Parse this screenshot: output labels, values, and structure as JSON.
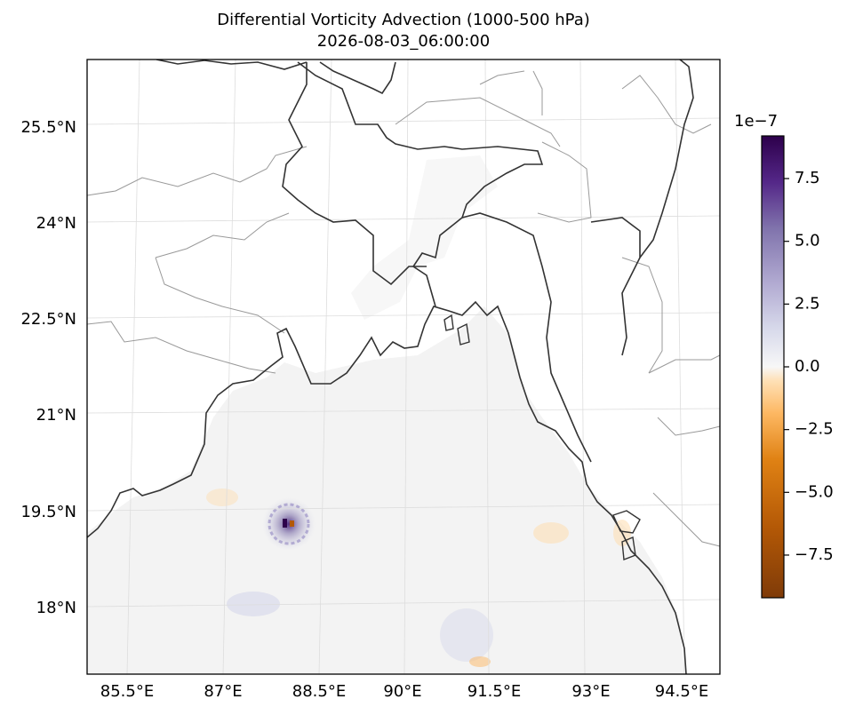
{
  "figure": {
    "title_line1": "Differential Vorticity Advection (1000-500 hPa)",
    "title_line2": "2026-08-03_06:00:00"
  },
  "axes": {
    "lon_labels": [
      "85.5°E",
      "87°E",
      "88.5°E",
      "90°E",
      "91.5°E",
      "93°E",
      "94.5°E"
    ],
    "lat_labels": [
      "25.5°N",
      "24°N",
      "22.5°N",
      "21°N",
      "19.5°N",
      "18°N"
    ]
  },
  "colorbar": {
    "multiplier_label": "1e−7",
    "tick_labels": [
      "7.5",
      "5.0",
      "2.5",
      "0.0",
      "−2.5",
      "−5.0",
      "−7.5"
    ],
    "tick_values": [
      7.5,
      5.0,
      2.5,
      0.0,
      -2.5,
      -5.0,
      -7.5
    ],
    "range": [
      -9.2,
      9.2
    ],
    "colormap": "PuOr",
    "colors": {
      "max": "#2d004b",
      "high": "#8073ac",
      "mid": "#f7f7f7",
      "low": "#fdb863",
      "min": "#7f3b08"
    }
  },
  "colors": {
    "coastline": "#333333",
    "borders": "#999999",
    "gridlines": "#dddddd",
    "field_background": "#f3f3f3"
  }
}
